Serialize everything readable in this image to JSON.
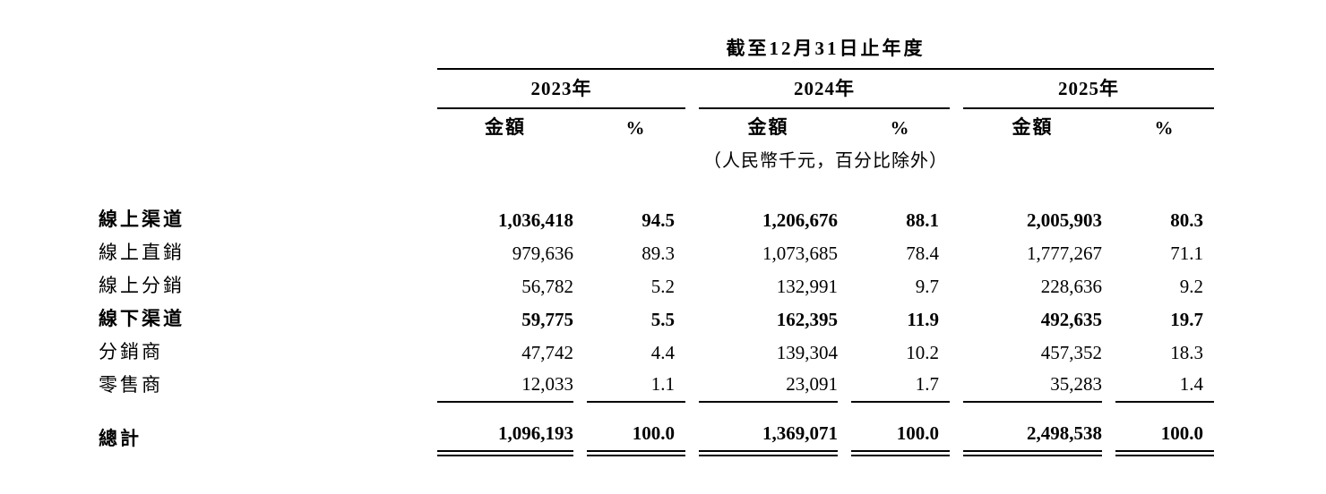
{
  "table": {
    "period_header": "截至12月31日止年度",
    "unit_note": "（人民幣千元，百分比除外）",
    "year_groups": [
      {
        "year": "2023年",
        "amount_label": "金額",
        "pct_label": "%"
      },
      {
        "year": "2024年",
        "amount_label": "金額",
        "pct_label": "%"
      },
      {
        "year": "2025年",
        "amount_label": "金額",
        "pct_label": "%"
      }
    ],
    "rows": [
      {
        "label": "線上渠道",
        "values": [
          "1,036,418",
          "94.5",
          "1,206,676",
          "88.1",
          "2,005,903",
          "80.3"
        ]
      },
      {
        "label": "線上直銷",
        "values": [
          "979,636",
          "89.3",
          "1,073,685",
          "78.4",
          "1,777,267",
          "71.1"
        ]
      },
      {
        "label": "線上分銷",
        "values": [
          "56,782",
          "5.2",
          "132,991",
          "9.7",
          "228,636",
          "9.2"
        ]
      },
      {
        "label": "線下渠道",
        "values": [
          "59,775",
          "5.5",
          "162,395",
          "11.9",
          "492,635",
          "19.7"
        ]
      },
      {
        "label": "分銷商",
        "values": [
          "47,742",
          "4.4",
          "139,304",
          "10.2",
          "457,352",
          "18.3"
        ]
      },
      {
        "label": "零售商",
        "values": [
          "12,033",
          "1.1",
          "23,091",
          "1.7",
          "35,283",
          "1.4"
        ]
      }
    ],
    "total_row": {
      "label": "總計",
      "values": [
        "1,096,193",
        "100.0",
        "1,369,071",
        "100.0",
        "2,498,538",
        "100.0"
      ]
    }
  }
}
